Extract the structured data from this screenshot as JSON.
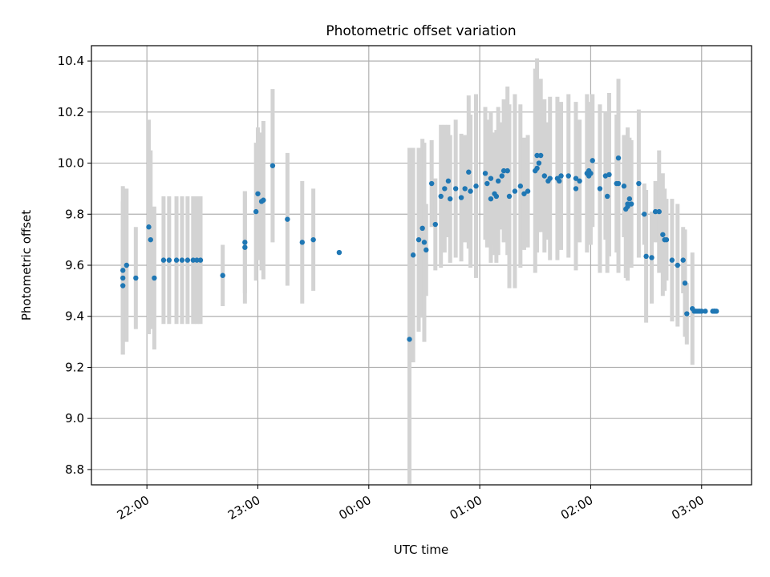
{
  "chart_data": {
    "type": "scatter",
    "title": "Photometric offset variation",
    "xlabel": "UTC time",
    "ylabel": "Photometric offset",
    "grid": true,
    "ylim": [
      8.74,
      10.46
    ],
    "xlim": [
      "21:30",
      "03:27"
    ],
    "x_ticks": [
      "22:00",
      "23:00",
      "00:00",
      "01:00",
      "02:00",
      "03:00"
    ],
    "y_ticks": [
      "8.8",
      "9.0",
      "9.2",
      "9.4",
      "9.6",
      "9.8",
      "10.0",
      "10.2",
      "10.4"
    ],
    "colors": {
      "point": "#1f77b4",
      "errorbar": "#d3d3d3",
      "grid": "#b0b0b0"
    },
    "series": [
      {
        "name": "",
        "x": [
          "21:47",
          "21:47",
          "21:47",
          "21:49",
          "21:54",
          "22:01",
          "22:02",
          "22:04",
          "22:09",
          "22:12",
          "22:16",
          "22:19",
          "22:22",
          "22:25",
          "22:27",
          "22:29",
          "22:41",
          "22:53",
          "22:53",
          "22:59",
          "23:00",
          "23:02",
          "23:03",
          "23:08",
          "23:16",
          "23:24",
          "23:30",
          "23:44",
          "00:22",
          "00:24",
          "00:27",
          "00:29",
          "00:30",
          "00:31",
          "00:34",
          "00:36",
          "00:39",
          "00:41",
          "00:43",
          "00:44",
          "00:47",
          "00:50",
          "00:52",
          "00:54",
          "00:55",
          "00:58",
          "01:03",
          "01:04",
          "01:06",
          "01:06",
          "01:08",
          "01:09",
          "01:10",
          "01:12",
          "01:13",
          "01:15",
          "01:16",
          "01:19",
          "01:22",
          "01:24",
          "01:26",
          "01:30",
          "01:31",
          "01:31",
          "01:32",
          "01:33",
          "01:35",
          "01:37",
          "01:38",
          "01:42",
          "01:43",
          "01:44",
          "01:48",
          "01:52",
          "01:52",
          "01:54",
          "01:58",
          "01:59",
          "01:59",
          "02:00",
          "02:01",
          "02:05",
          "02:08",
          "02:09",
          "02:10",
          "02:14",
          "02:15",
          "02:15",
          "02:18",
          "02:19",
          "02:20",
          "02:20",
          "02:21",
          "02:22",
          "02:26",
          "02:29",
          "02:30",
          "02:33",
          "02:35",
          "02:37",
          "02:39",
          "02:40",
          "02:41",
          "02:44",
          "02:47",
          "02:50",
          "02:51",
          "02:52",
          "02:55",
          "02:56",
          "02:57",
          "02:58",
          "02:59",
          "03:00",
          "03:02",
          "03:06",
          "03:07",
          "03:07",
          "03:08"
        ],
        "y": [
          9.58,
          9.55,
          9.52,
          9.6,
          9.55,
          9.75,
          9.7,
          9.55,
          9.62,
          9.62,
          9.62,
          9.62,
          9.62,
          9.62,
          9.62,
          9.62,
          9.56,
          9.67,
          9.69,
          9.81,
          9.88,
          9.85,
          9.855,
          9.99,
          9.78,
          9.69,
          9.7,
          9.65,
          9.31,
          9.64,
          9.7,
          9.745,
          9.69,
          9.66,
          9.92,
          9.76,
          9.87,
          9.9,
          9.93,
          9.86,
          9.9,
          9.865,
          9.9,
          9.965,
          9.89,
          9.91,
          9.96,
          9.92,
          9.94,
          9.86,
          9.88,
          9.87,
          9.93,
          9.95,
          9.97,
          9.97,
          9.87,
          9.89,
          9.91,
          9.88,
          9.89,
          9.97,
          9.98,
          10.03,
          10.0,
          10.03,
          9.95,
          9.93,
          9.94,
          9.94,
          9.93,
          9.95,
          9.95,
          9.9,
          9.94,
          9.93,
          9.96,
          9.97,
          9.95,
          9.96,
          10.01,
          9.9,
          9.95,
          9.87,
          9.955,
          9.92,
          10.02,
          9.92,
          9.91,
          9.82,
          9.83,
          9.84,
          9.86,
          9.84,
          9.92,
          9.8,
          9.635,
          9.63,
          9.81,
          9.81,
          9.72,
          9.7,
          9.7,
          9.62,
          9.6,
          9.62,
          9.53,
          9.41,
          9.43,
          9.42,
          9.42,
          9.42,
          9.42,
          9.42,
          9.42,
          9.42,
          9.42,
          9.42,
          9.42
        ],
        "yerr": [
          0.33,
          0.3,
          0.22,
          0.3,
          0.2,
          0.42,
          0.35,
          0.28,
          0.25,
          0.25,
          0.25,
          0.25,
          0.25,
          0.25,
          0.25,
          0.25,
          0.12,
          0.22,
          0.2,
          0.27,
          0.26,
          0.27,
          0.31,
          0.3,
          0.26,
          0.24,
          0.2,
          0.0,
          0.75,
          0.42,
          0.36,
          0.35,
          0.39,
          0.18,
          0.17,
          0.18,
          0.28,
          0.25,
          0.22,
          0.25,
          0.27,
          0.25,
          0.21,
          0.3,
          0.3,
          0.36,
          0.26,
          0.25,
          0.26,
          0.25,
          0.24,
          0.26,
          0.29,
          0.21,
          0.28,
          0.33,
          0.36,
          0.38,
          0.32,
          0.22,
          0.22,
          0.4,
          0.22,
          0.38,
          0.27,
          0.3,
          0.3,
          0.23,
          0.32,
          0.32,
          0.26,
          0.29,
          0.32,
          0.32,
          0.3,
          0.24,
          0.31,
          0.22,
          0.27,
          0.28,
          0.26,
          0.33,
          0.25,
          0.3,
          0.32,
          0.27,
          0.31,
          0.35,
          0.2,
          0.27,
          0.29,
          0.3,
          0.24,
          0.25,
          0.29,
          0.12,
          0.26,
          0.18,
          0.12,
          0.24,
          0.24,
          0.2,
          0.16,
          0.24,
          0.24,
          0.13,
          0.21,
          0.12,
          0.22,
          0.0,
          0.0,
          0.0,
          0.0,
          0.0,
          0.0,
          0.0,
          0.0,
          0.0,
          0.0
        ]
      }
    ]
  }
}
